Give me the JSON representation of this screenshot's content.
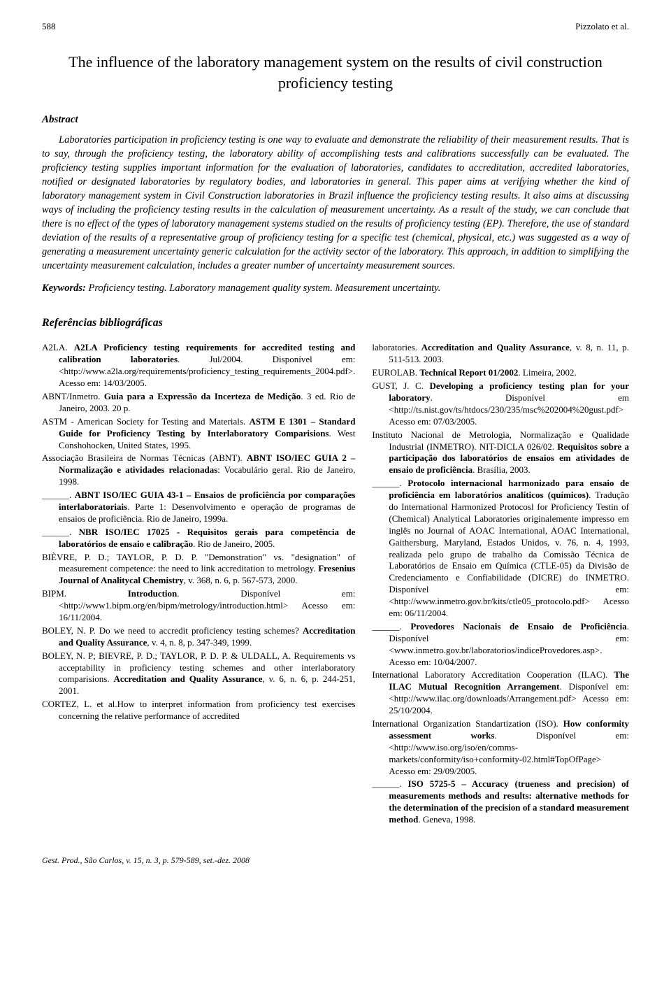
{
  "header": {
    "page_number": "588",
    "running_header": "Pizzolato et al."
  },
  "title": "The influence of the laboratory management system on the results of civil construction proficiency testing",
  "abstract": {
    "heading": "Abstract",
    "text": "Laboratories participation in proficiency testing is one way to evaluate and demonstrate the reliability of their measurement results. That is to say, through the proficiency testing, the laboratory ability of accomplishing tests and calibrations successfully can be evaluated. The proficiency testing supplies important information for the evaluation of laboratories, candidates to accreditation, accredited laboratories, notified or designated laboratories by regulatory bodies, and laboratories in general. This paper aims at verifying whether the kind of laboratory management system in Civil Construction laboratories in Brazil influence the proficiency testing results. It also aims at discussing ways of including the proficiency testing results in the calculation of measurement uncertainty. As a result of the study, we can conclude that there is no effect of the types of laboratory management systems studied on the results of proficiency testing (EP). Therefore, the use of standard deviation of the results of a representative group of proficiency testing for a specific test (chemical, physical, etc.) was suggested as a way of generating a measurement uncertainty generic calculation for the activity sector of the laboratory. This approach, in addition to simplifying the uncertainty measurement calculation, includes a greater number of uncertainty measurement sources."
  },
  "keywords": {
    "label": "Keywords:",
    "text": "Proficiency testing. Laboratory management quality system. Measurement uncertainty."
  },
  "references": {
    "heading": "Referências bibliográficas",
    "left_column": [
      "A2LA. <strong>A2LA Proficiency testing requirements for accredited testing and calibration laboratories</strong>. Jul/2004. Disponível em: &lt;http://www.a2la.org/requirements/proficiency_testing_requirements_2004.pdf&gt;. Acesso em: 14/03/2005.",
      "ABNT/Inmetro. <strong>Guia para a Expressão da Incerteza de Medição</strong>. 3 ed. Rio de Janeiro, 2003. 20 p.",
      "ASTM - American Society for Testing and Materials. <strong>ASTM E 1301 – Standard Guide for Proficiency Testing by Interlaboratory Comparisions</strong>. West Conshohocken, United States, 1995.",
      "Associação Brasileira de Normas Técnicas (ABNT). <strong>ABNT ISO/IEC GUIA 2 – Normalização e atividades relacionadas</strong>: Vocabulário geral. Rio de Janeiro, 1998.",
      "______. <strong>ABNT ISO/IEC GUIA 43-1 – Ensaios de proficiência por comparações interlaboratoriais</strong>. Parte 1: Desenvolvimento e operação de programas de ensaios de proficiência. Rio de Janeiro, 1999a.",
      "______. <strong>NBR ISO/IEC 17025 - Requisitos gerais para competência de laboratórios de ensaio e calibração</strong>. Rio de Janeiro, 2005.",
      "BIÈVRE, P. D.; TAYLOR, P. D. P. \"Demonstration\" vs. \"designation\" of measurement competence: the need to link accreditation to metrology. <strong>Fresenius Journal of Analitycal Chemistry</strong>, v. 368, n. 6, p. 567-573, 2000.",
      "BIPM. <strong>Introduction</strong>. Disponível em: &lt;http://www1.bipm.org/en/bipm/metrology/introduction.html&gt; Acesso em: 16/11/2004.",
      "BOLEY, N. P. Do we need to accredit proficiency testing schemes? <strong>Accreditation and Quality Assurance</strong>, v. 4, n. 8, p. 347-349, 1999.",
      "BOLEY, N. P; BIEVRE, P. D.; TAYLOR, P. D. P. &amp; ULDALL, A. Requirements vs acceptability in proficiency testing schemes and other interlaboratory comparisions. <strong>Accreditation and Quality Assurance</strong>, v. 6, n. 6, p. 244-251, 2001.",
      "CORTEZ, L. et al.How to interpret information from proficiency test exercises concerning the relative performance of accredited"
    ],
    "right_column": [
      "laboratories. <strong>Accreditation and Quality Assurance</strong>, v. 8, n. 11, p. 511-513. 2003.",
      "EUROLAB. <strong>Technical Report 01/2002</strong>. Limeira, 2002.",
      "GUST, J. C. <strong>Developing a proficiency testing plan for your laboratory</strong>. Disponível em &lt;http://ts.nist.gov/ts/htdocs/230/235/msc%202004%20gust.pdf&gt; Acesso em: 07/03/2005.",
      "Instituto Nacional de Metrologia, Normalização e Qualidade Industrial (INMETRO). NIT-DICLA 026/02. <strong>Requisitos sobre a participação dos laboratórios de ensaios em atividades de ensaio de proficiência</strong>. Brasília, 2003.",
      "______. <strong>Protocolo internacional harmonizado para ensaio de proficiência em laboratórios analíticos (químicos)</strong>. Tradução do International Harmonized Protocosl for Proficiency Testin of (Chemical) Analytical Laboratories originalemente impresso em inglês no Journal of AOAC International, AOAC International, Gaithersburg, Maryland, Estados Unidos, v. 76, n. 4, 1993, realizada pelo grupo de trabalho da Comissão Técnica de Laboratórios de Ensaio em Química (CTLE-05) da Divisão de Credenciamento e Confiabilidade (DICRE) do INMETRO. Disponível em: &lt;http://www.inmetro.gov.br/kits/ctle05_protocolo.pdf&gt; Acesso em: 06/11/2004.",
      "______. <strong>Provedores Nacionais de Ensaio de Proficiência</strong>. Disponível em: &lt;www.inmetro.gov.br/laboratorios/indiceProvedores.asp&gt;. Acesso em: 10/04/2007.",
      "International Laboratory Accreditation Cooperation (ILAC). <strong>The ILAC Mutual Recognition Arrangement</strong>. Disponível em: &lt;http://www.ilac.org/downloads/Arrangement.pdf&gt; Acesso em: 25/10/2004.",
      "International Organization Standartization (ISO). <strong>How conformity assessment works</strong>. Disponível em: &lt;http://www.iso.org/iso/en/comms-markets/conformity/iso+conformity-02.html#TopOfPage&gt; Acesso em: 29/09/2005.",
      "______. <strong>ISO 5725-5 – Accuracy (trueness and precision) of measurements methods and results: alternative methods for the determination of the precision of a standard measurement method</strong>. Geneva, 1998."
    ]
  },
  "footer": "Gest. Prod., São Carlos, v. 15, n. 3, p. 579-589, set.-dez. 2008"
}
